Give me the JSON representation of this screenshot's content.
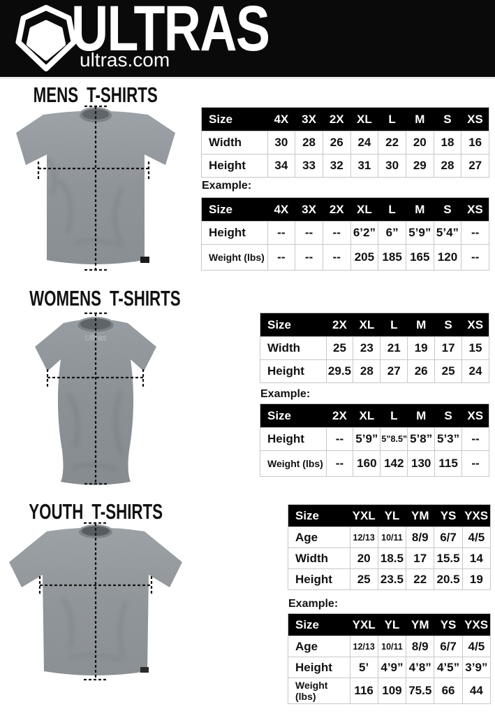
{
  "header": {
    "brand": "ULTRAS",
    "site": "ultras.com"
  },
  "colors": {
    "header-bg": "#0a0a0a",
    "table-border": "#c8c8c8",
    "text": "#111111",
    "shirt-gray": "#8b9196"
  },
  "sections": [
    {
      "title": "MENS T-SHIRTS",
      "example_label": "Example:",
      "size_table": {
        "columns": [
          "Size",
          "4X",
          "3X",
          "2X",
          "XL",
          "L",
          "M",
          "S",
          "XS"
        ],
        "rows": [
          {
            "label": "Width",
            "values": [
              "30",
              "28",
              "26",
              "24",
              "22",
              "20",
              "18",
              "16"
            ]
          },
          {
            "label": "Height",
            "values": [
              "34",
              "33",
              "32",
              "31",
              "30",
              "29",
              "28",
              "27"
            ]
          }
        ]
      },
      "example_table": {
        "columns": [
          "Size",
          "4X",
          "3X",
          "2X",
          "XL",
          "L",
          "M",
          "S",
          "XS"
        ],
        "rows": [
          {
            "label": "Height",
            "values": [
              "--",
              "--",
              "--",
              "6’2”",
              "6”",
              "5’9”",
              "5’4”",
              "--"
            ]
          },
          {
            "label": "Weight (lbs)",
            "values": [
              "--",
              "--",
              "--",
              "205",
              "185",
              "165",
              "120",
              "--"
            ]
          }
        ]
      }
    },
    {
      "title": "WOMENS T-SHIRTS",
      "example_label": "Example:",
      "size_table": {
        "columns": [
          "Size",
          "2X",
          "XL",
          "L",
          "M",
          "S",
          "XS"
        ],
        "rows": [
          {
            "label": "Width",
            "values": [
              "25",
              "23",
              "21",
              "19",
              "17",
              "15"
            ]
          },
          {
            "label": "Height",
            "values": [
              "29.5",
              "28",
              "27",
              "26",
              "25",
              "24"
            ]
          }
        ]
      },
      "example_table": {
        "columns": [
          "Size",
          "2X",
          "XL",
          "L",
          "M",
          "S",
          "XS"
        ],
        "rows": [
          {
            "label": "Height",
            "values": [
              "--",
              "5’9”",
              "5”8.5”",
              "5’8”",
              "5’3”",
              "--"
            ]
          },
          {
            "label": "Weight (lbs)",
            "values": [
              "--",
              "160",
              "142",
              "130",
              "115",
              "--"
            ]
          }
        ]
      }
    },
    {
      "title": "YOUTH T-SHIRTS",
      "example_label": "Example:",
      "size_table": {
        "columns": [
          "Size",
          "YXL",
          "YL",
          "YM",
          "YS",
          "YXS"
        ],
        "rows": [
          {
            "label": "Age",
            "values": [
              "12/13",
              "10/11",
              "8/9",
              "6/7",
              "4/5"
            ]
          },
          {
            "label": "Width",
            "values": [
              "20",
              "18.5",
              "17",
              "15.5",
              "14"
            ]
          },
          {
            "label": "Height",
            "values": [
              "25",
              "23.5",
              "22",
              "20.5",
              "19"
            ]
          }
        ]
      },
      "example_table": {
        "columns": [
          "Size",
          "YXL",
          "YL",
          "YM",
          "YS",
          "YXS"
        ],
        "rows": [
          {
            "label": "Age",
            "values": [
              "12/13",
              "10/11",
              "8/9",
              "6/7",
              "4/5"
            ]
          },
          {
            "label": "Height",
            "values": [
              "5’",
              "4’9”",
              "4’8”",
              "4’5”",
              "3’9”"
            ]
          },
          {
            "label": "Weight (lbs)",
            "values": [
              "116",
              "109",
              "75.5",
              "66",
              "44"
            ]
          }
        ]
      }
    }
  ]
}
